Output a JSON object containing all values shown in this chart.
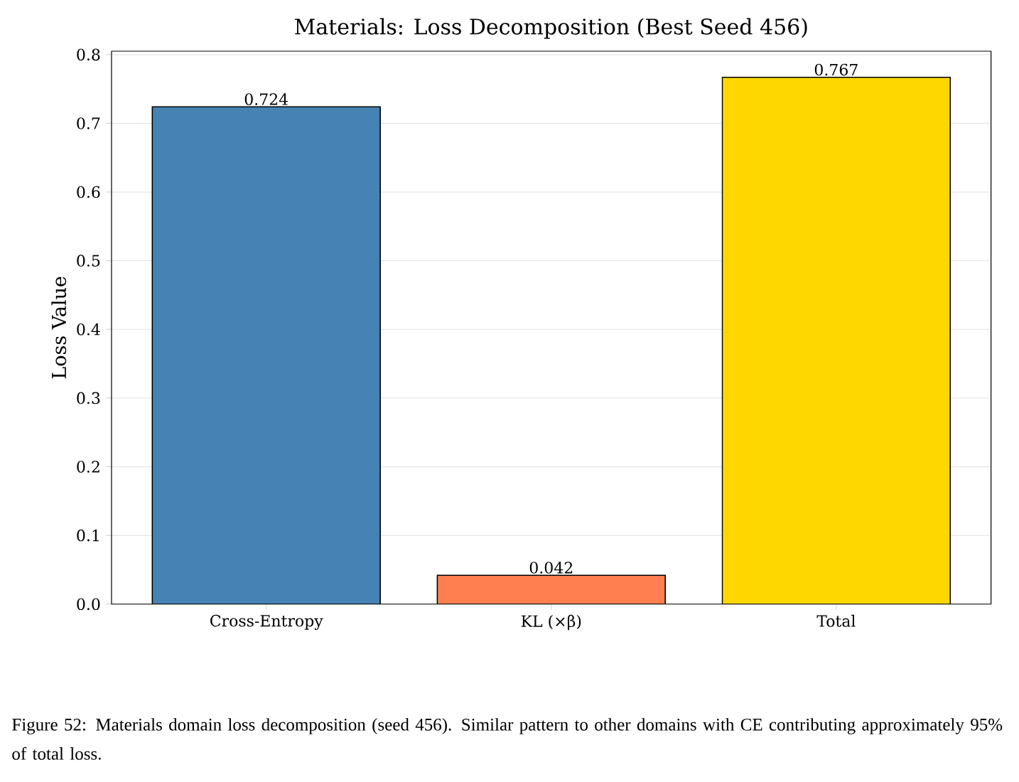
{
  "chart_data": {
    "type": "bar",
    "title": "Materials: Loss Decomposition (Best Seed 456)",
    "ylabel": "Loss Value",
    "categories": [
      "Cross-Entropy",
      "KL (×β)",
      "Total"
    ],
    "values": [
      0.724,
      0.042,
      0.767
    ],
    "colors": [
      "#4682b4",
      "#ff7f50",
      "#ffd700"
    ],
    "ylim": [
      0,
      0.805
    ],
    "yticks": [
      {
        "value": 0,
        "label": "0.0"
      },
      {
        "value": 0.1,
        "label": "0.1"
      },
      {
        "value": 0.2,
        "label": "0.2"
      },
      {
        "value": 0.3,
        "label": "0.3"
      },
      {
        "value": 0.4,
        "label": "0.4"
      },
      {
        "value": 0.5,
        "label": "0.5"
      },
      {
        "value": 0.6,
        "label": "0.6"
      },
      {
        "value": 0.7,
        "label": "0.7"
      },
      {
        "value": 0.8,
        "label": "0.8"
      }
    ],
    "grid": "y",
    "data_labels": true,
    "annotations": [
      "Figure 52: Materials domain loss decomposition (seed 456). Similar pattern to other domains with CE contributing approximately 95% of total loss."
    ]
  }
}
